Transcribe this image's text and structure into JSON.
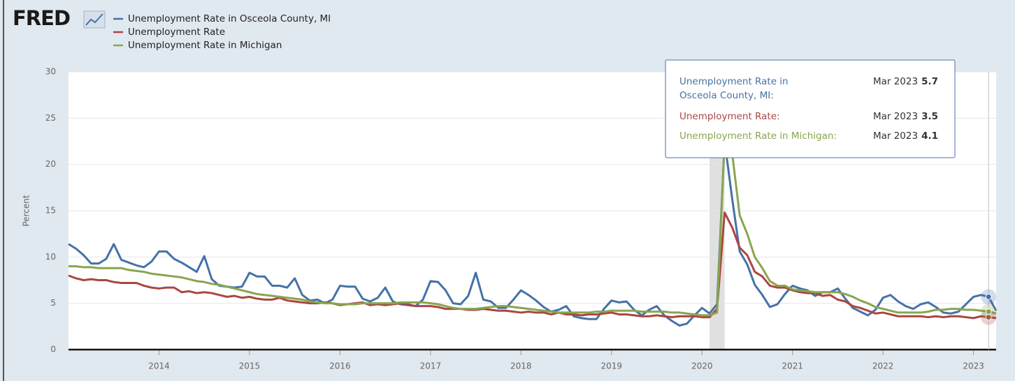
{
  "logo": "FRED",
  "chart_data": {
    "type": "line",
    "ylabel": "Percent",
    "ylim": [
      0,
      30
    ],
    "yticks": [
      0,
      5,
      10,
      15,
      20,
      25,
      30
    ],
    "xlim": [
      2013,
      2023.25
    ],
    "xticks": [
      2014,
      2015,
      2016,
      2017,
      2018,
      2019,
      2020,
      2021,
      2022,
      2023
    ],
    "grid": true,
    "legend": "top-left",
    "recessions": [
      {
        "start": "2020-02",
        "end": "2020-04"
      }
    ],
    "x": [
      "2013-01",
      "2013-02",
      "2013-03",
      "2013-04",
      "2013-05",
      "2013-06",
      "2013-07",
      "2013-08",
      "2013-09",
      "2013-10",
      "2013-11",
      "2013-12",
      "2014-01",
      "2014-02",
      "2014-03",
      "2014-04",
      "2014-05",
      "2014-06",
      "2014-07",
      "2014-08",
      "2014-09",
      "2014-10",
      "2014-11",
      "2014-12",
      "2015-01",
      "2015-02",
      "2015-03",
      "2015-04",
      "2015-05",
      "2015-06",
      "2015-07",
      "2015-08",
      "2015-09",
      "2015-10",
      "2015-11",
      "2015-12",
      "2016-01",
      "2016-02",
      "2016-03",
      "2016-04",
      "2016-05",
      "2016-06",
      "2016-07",
      "2016-08",
      "2016-09",
      "2016-10",
      "2016-11",
      "2016-12",
      "2017-01",
      "2017-02",
      "2017-03",
      "2017-04",
      "2017-05",
      "2017-06",
      "2017-07",
      "2017-08",
      "2017-09",
      "2017-10",
      "2017-11",
      "2017-12",
      "2018-01",
      "2018-02",
      "2018-03",
      "2018-04",
      "2018-05",
      "2018-06",
      "2018-07",
      "2018-08",
      "2018-09",
      "2018-10",
      "2018-11",
      "2018-12",
      "2019-01",
      "2019-02",
      "2019-03",
      "2019-04",
      "2019-05",
      "2019-06",
      "2019-07",
      "2019-08",
      "2019-09",
      "2019-10",
      "2019-11",
      "2019-12",
      "2020-01",
      "2020-02",
      "2020-03",
      "2020-04",
      "2020-05",
      "2020-06",
      "2020-07",
      "2020-08",
      "2020-09",
      "2020-10",
      "2020-11",
      "2020-12",
      "2021-01",
      "2021-02",
      "2021-03",
      "2021-04",
      "2021-05",
      "2021-06",
      "2021-07",
      "2021-08",
      "2021-09",
      "2021-10",
      "2021-11",
      "2021-12",
      "2022-01",
      "2022-02",
      "2022-03",
      "2022-04",
      "2022-05",
      "2022-06",
      "2022-07",
      "2022-08",
      "2022-09",
      "2022-10",
      "2022-11",
      "2022-12",
      "2023-01",
      "2023-02",
      "2023-03",
      "2023-04"
    ],
    "series": [
      {
        "name": "Unemployment Rate in Osceola County, MI",
        "color": "#4572a7",
        "values": [
          11.4,
          10.9,
          10.2,
          9.3,
          9.3,
          9.8,
          11.4,
          9.7,
          9.4,
          9.1,
          8.9,
          9.5,
          10.6,
          10.6,
          9.8,
          9.4,
          8.9,
          8.4,
          10.1,
          7.6,
          6.9,
          6.8,
          6.7,
          6.8,
          8.3,
          7.9,
          7.9,
          6.9,
          6.9,
          6.7,
          7.7,
          5.9,
          5.3,
          5.4,
          5.0,
          5.4,
          6.9,
          6.8,
          6.8,
          5.5,
          5.2,
          5.6,
          6.7,
          5.2,
          4.9,
          4.8,
          4.7,
          5.4,
          7.4,
          7.3,
          6.4,
          5.0,
          4.9,
          5.8,
          8.3,
          5.4,
          5.2,
          4.5,
          4.5,
          5.4,
          6.4,
          5.9,
          5.3,
          4.6,
          4.1,
          4.3,
          4.7,
          3.6,
          3.4,
          3.3,
          3.3,
          4.4,
          5.3,
          5.1,
          5.2,
          4.3,
          3.7,
          4.3,
          4.7,
          3.7,
          3.1,
          2.6,
          2.8,
          3.7,
          4.5,
          3.9,
          4.9,
          22.5,
          16.3,
          10.6,
          9.2,
          7.0,
          5.9,
          4.6,
          4.9,
          6.0,
          6.9,
          6.6,
          6.4,
          5.8,
          6.2,
          6.2,
          6.6,
          5.5,
          4.5,
          4.1,
          3.7,
          4.3,
          5.6,
          5.9,
          5.2,
          4.7,
          4.4,
          4.9,
          5.1,
          4.6,
          4.0,
          3.9,
          4.1,
          4.9,
          5.7,
          5.9,
          5.7,
          4.2
        ]
      },
      {
        "name": "Unemployment Rate",
        "color": "#aa4643",
        "values": [
          8.0,
          7.7,
          7.5,
          7.6,
          7.5,
          7.5,
          7.3,
          7.2,
          7.2,
          7.2,
          6.9,
          6.7,
          6.6,
          6.7,
          6.7,
          6.2,
          6.3,
          6.1,
          6.2,
          6.1,
          5.9,
          5.7,
          5.8,
          5.6,
          5.7,
          5.5,
          5.4,
          5.4,
          5.6,
          5.3,
          5.2,
          5.1,
          5.0,
          5.0,
          5.1,
          5.0,
          4.8,
          4.9,
          5.0,
          5.1,
          4.8,
          4.9,
          4.8,
          4.9,
          5.0,
          4.9,
          4.7,
          4.7,
          4.7,
          4.6,
          4.4,
          4.4,
          4.4,
          4.3,
          4.3,
          4.4,
          4.3,
          4.2,
          4.2,
          4.1,
          4.0,
          4.1,
          4.0,
          4.0,
          3.8,
          4.0,
          3.8,
          3.8,
          3.7,
          3.8,
          3.8,
          3.9,
          4.0,
          3.8,
          3.8,
          3.7,
          3.6,
          3.6,
          3.7,
          3.6,
          3.5,
          3.6,
          3.6,
          3.6,
          3.5,
          3.5,
          4.4,
          14.8,
          13.2,
          11.0,
          10.2,
          8.4,
          7.9,
          6.9,
          6.7,
          6.7,
          6.4,
          6.2,
          6.1,
          6.1,
          5.8,
          5.9,
          5.4,
          5.2,
          4.7,
          4.5,
          4.2,
          3.9,
          4.0,
          3.8,
          3.6,
          3.6,
          3.6,
          3.6,
          3.5,
          3.6,
          3.5,
          3.6,
          3.6,
          3.5,
          3.4,
          3.6,
          3.5,
          3.4
        ]
      },
      {
        "name": "Unemployment Rate in Michigan",
        "color": "#89a54e",
        "values": [
          9.0,
          9.0,
          8.9,
          8.9,
          8.8,
          8.8,
          8.8,
          8.8,
          8.6,
          8.5,
          8.4,
          8.2,
          8.1,
          8.0,
          7.9,
          7.8,
          7.6,
          7.4,
          7.3,
          7.1,
          7.0,
          6.8,
          6.6,
          6.4,
          6.2,
          6.0,
          5.9,
          5.8,
          5.7,
          5.6,
          5.5,
          5.4,
          5.2,
          5.1,
          5.0,
          5.0,
          4.9,
          4.9,
          4.9,
          5.0,
          5.0,
          5.0,
          5.0,
          5.0,
          5.1,
          5.1,
          5.1,
          5.1,
          5.0,
          4.9,
          4.7,
          4.5,
          4.4,
          4.4,
          4.4,
          4.5,
          4.6,
          4.7,
          4.7,
          4.6,
          4.5,
          4.4,
          4.3,
          4.2,
          4.1,
          4.0,
          4.0,
          4.0,
          4.0,
          4.0,
          4.1,
          4.1,
          4.2,
          4.2,
          4.2,
          4.2,
          4.1,
          4.1,
          4.1,
          4.1,
          4.0,
          4.0,
          3.9,
          3.8,
          3.7,
          3.7,
          4.0,
          22.7,
          21.2,
          14.5,
          12.5,
          10.0,
          8.8,
          7.4,
          6.9,
          6.9,
          6.5,
          6.4,
          6.3,
          6.2,
          6.2,
          6.2,
          6.2,
          6.0,
          5.7,
          5.3,
          5.0,
          4.6,
          4.4,
          4.2,
          4.0,
          4.0,
          4.0,
          4.0,
          4.1,
          4.3,
          4.3,
          4.4,
          4.4,
          4.3,
          4.3,
          4.2,
          4.1,
          3.9
        ]
      }
    ],
    "tooltip": {
      "date": "Mar 2023",
      "entries": [
        {
          "label": "Unemployment Rate in Osceola County, MI:",
          "value": 5.7
        },
        {
          "label": "Unemployment Rate:",
          "value": 3.5
        },
        {
          "label": "Unemployment Rate in Michigan:",
          "value": 4.1
        }
      ]
    }
  }
}
